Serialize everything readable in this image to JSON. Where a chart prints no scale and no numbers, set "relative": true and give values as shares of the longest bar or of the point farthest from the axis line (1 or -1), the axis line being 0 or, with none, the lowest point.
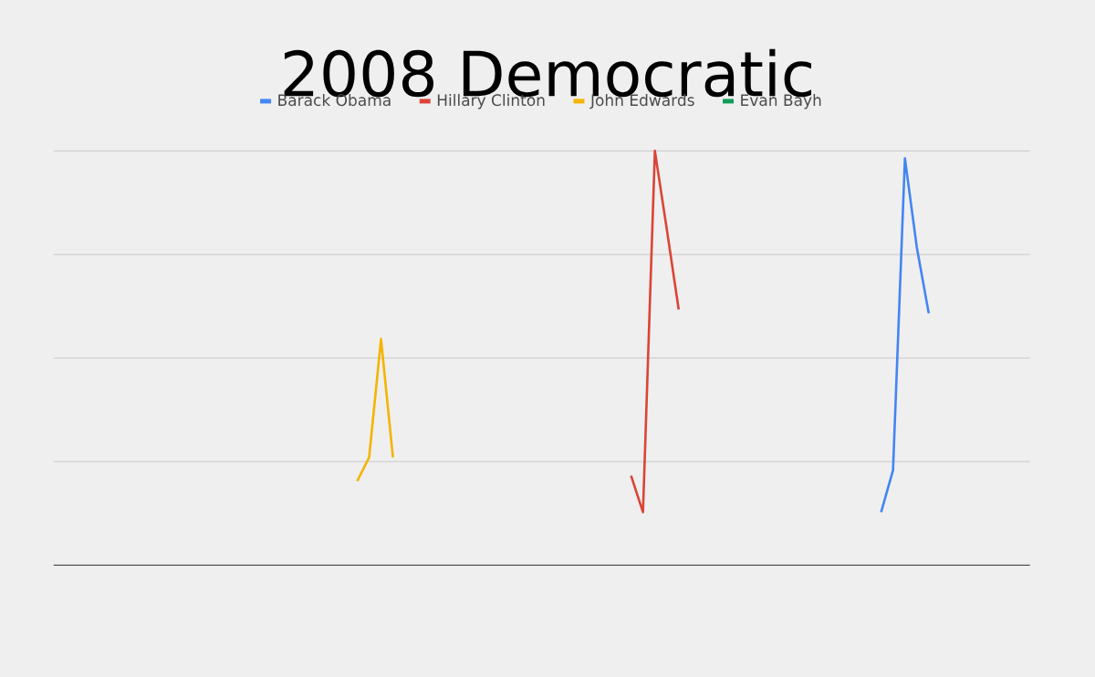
{
  "chart_data": {
    "type": "line",
    "title": "2008 Democratic",
    "relative": true,
    "grid": true,
    "legend": "top",
    "categories": [
      null,
      null,
      null,
      null,
      null,
      null,
      null,
      null,
      null,
      null,
      null,
      null,
      null,
      null,
      null,
      null,
      null,
      null,
      null,
      null,
      null,
      null,
      null,
      null,
      null,
      null,
      null,
      null,
      null,
      null,
      null,
      null,
      null,
      null,
      null,
      null,
      null,
      null,
      null,
      null,
      null,
      null,
      null,
      null,
      null,
      null,
      null,
      null,
      null,
      null,
      null,
      null,
      null,
      null,
      null,
      null,
      null,
      null,
      null,
      null,
      null,
      null,
      null,
      null,
      null,
      null,
      null,
      null,
      null,
      null,
      null,
      null,
      null,
      null,
      null,
      null,
      null,
      null,
      null,
      null,
      null,
      null
    ],
    "series": [
      {
        "name": "Barack Obama",
        "color": "#4285f4",
        "values": [
          null,
          null,
          null,
          null,
          null,
          null,
          null,
          null,
          null,
          null,
          null,
          null,
          null,
          null,
          null,
          null,
          null,
          null,
          null,
          null,
          null,
          null,
          null,
          null,
          null,
          null,
          null,
          null,
          null,
          null,
          null,
          null,
          null,
          null,
          null,
          null,
          null,
          null,
          null,
          null,
          null,
          null,
          null,
          null,
          null,
          null,
          null,
          null,
          null,
          null,
          null,
          null,
          null,
          null,
          null,
          null,
          null,
          null,
          null,
          null,
          null,
          null,
          null,
          null,
          null,
          null,
          null,
          null,
          null,
          0.128,
          0.229,
          0.982,
          0.767,
          0.608,
          null,
          null,
          null,
          null,
          null,
          null,
          null,
          null
        ]
      },
      {
        "name": "Hillary Clinton",
        "color": "#db4437",
        "values": [
          null,
          null,
          null,
          null,
          null,
          null,
          null,
          null,
          null,
          null,
          null,
          null,
          null,
          null,
          null,
          null,
          null,
          null,
          null,
          null,
          null,
          null,
          null,
          null,
          null,
          null,
          null,
          null,
          null,
          null,
          null,
          null,
          null,
          null,
          null,
          null,
          null,
          null,
          null,
          null,
          null,
          null,
          null,
          null,
          null,
          null,
          null,
          null,
          0.216,
          0.128,
          1,
          0.811,
          0.617,
          null,
          null,
          null,
          null,
          null,
          null,
          null,
          null,
          null,
          null,
          null,
          null,
          null,
          null,
          null,
          null,
          null,
          null,
          null,
          null,
          null,
          null,
          null,
          null,
          null,
          null,
          null,
          null,
          null
        ]
      },
      {
        "name": "John Edwards",
        "color": "#f4b400",
        "values": [
          null,
          null,
          null,
          null,
          null,
          null,
          null,
          null,
          null,
          null,
          null,
          null,
          null,
          null,
          null,
          null,
          null,
          null,
          null,
          null,
          null,
          null,
          null,
          null,
          null,
          0.203,
          0.26,
          0.546,
          0.26,
          null,
          null,
          null,
          null,
          null,
          null,
          null,
          null,
          null,
          null,
          null,
          null,
          null,
          null,
          null,
          null,
          null,
          null,
          null,
          null,
          null,
          null,
          null,
          null,
          null,
          null,
          null,
          null,
          null,
          null,
          null,
          null,
          null,
          null,
          null,
          null,
          null,
          null,
          null,
          null,
          null,
          null,
          null,
          null,
          null,
          null,
          null,
          null,
          null,
          null,
          null,
          null,
          null
        ]
      },
      {
        "name": "Evan Bayh",
        "color": "#0f9d58",
        "values": [
          null,
          null,
          null,
          null,
          null,
          null,
          null,
          null,
          null,
          null,
          null,
          null,
          null,
          null,
          null,
          null,
          null,
          null,
          null,
          null,
          null,
          null,
          null,
          null,
          null,
          null,
          null,
          null,
          null,
          null,
          null,
          null,
          null,
          null,
          null,
          null,
          null,
          null,
          null,
          null,
          null,
          null,
          null,
          null,
          null,
          null,
          null,
          null,
          null,
          null,
          null,
          null,
          null,
          null,
          null,
          null,
          null,
          null,
          null,
          null,
          null,
          null,
          null,
          null,
          null,
          null,
          null,
          null,
          null,
          null,
          null,
          null,
          null,
          null,
          null,
          null,
          null,
          null,
          null,
          null,
          null,
          null
        ]
      }
    ]
  }
}
